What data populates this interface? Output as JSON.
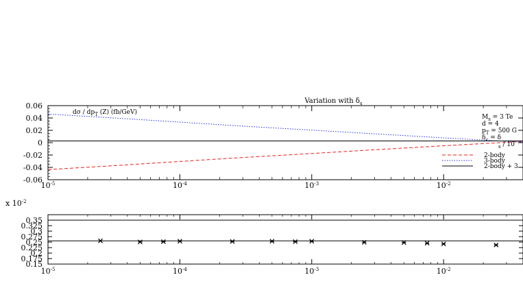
{
  "chart_data": [
    {
      "type": "line",
      "title": "Variation with δ",
      "title_sub": "s",
      "annotation": {
        "main": "dσ / dp",
        "sub": "T",
        "rest": " (Z) (fb/GeV)"
      },
      "x_scale": "log",
      "xlim": [
        1e-05,
        0.04
      ],
      "ylim": [
        -0.06,
        0.06
      ],
      "x_ticks": [
        {
          "value": 1e-05,
          "base": "10",
          "exp": "-5"
        },
        {
          "value": 0.0001,
          "base": "10",
          "exp": "-4"
        },
        {
          "value": 0.001,
          "base": "10",
          "exp": "-3"
        },
        {
          "value": 0.01,
          "base": "10",
          "exp": "-2"
        }
      ],
      "y_ticks": [
        {
          "value": 0.06,
          "label": "0.06"
        },
        {
          "value": 0.04,
          "label": "0.04"
        },
        {
          "value": 0.02,
          "label": "0.02"
        },
        {
          "value": 0,
          "label": "0"
        },
        {
          "value": -0.02,
          "label": "-0.02"
        },
        {
          "value": -0.04,
          "label": "-0.04"
        },
        {
          "value": -0.06,
          "label": "-0.06"
        }
      ],
      "params": [
        {
          "main": "M",
          "sub": "s",
          "rest": " = 3 Te"
        },
        {
          "main": "d = 4",
          "sub": "",
          "rest": ""
        },
        {
          "main": "p",
          "sub": "T",
          "rest": " = 500 G"
        },
        {
          "main": "δ",
          "sub": "c",
          "rest": " = δ"
        },
        {
          "main": "",
          "sub": "s",
          "rest": " / 10"
        }
      ],
      "legend_position": "lower-right",
      "series": [
        {
          "name": "2-body",
          "style": "dashed",
          "color": "#e8201e",
          "x": [
            1e-05,
            3e-05,
            0.0001,
            0.0003,
            0.001,
            0.003,
            0.01,
            0.04
          ],
          "y": [
            -0.0435,
            -0.0375,
            -0.0305,
            -0.024,
            -0.0175,
            -0.0115,
            -0.005,
            0.002
          ]
        },
        {
          "name": "3-body",
          "style": "dotted",
          "color": "#2630d6",
          "x": [
            1e-05,
            3e-05,
            0.0001,
            0.0003,
            0.001,
            0.003,
            0.01,
            0.04
          ],
          "y": [
            0.0463,
            0.0403,
            0.0333,
            0.0268,
            0.0203,
            0.0143,
            0.0078,
            0.0008
          ]
        },
        {
          "name": "2-body + 3",
          "style": "solid",
          "color": "#000000",
          "x": [
            1e-05,
            0.04
          ],
          "y": [
            0.0028,
            0.0028
          ]
        }
      ]
    },
    {
      "type": "scatter",
      "multiplier": {
        "prefix": "x 10",
        "exp": "-2"
      },
      "x_scale": "log",
      "xlim": [
        1e-05,
        0.04
      ],
      "ylim": [
        0.15,
        0.375
      ],
      "x_ticks": [
        {
          "value": 1e-05,
          "base": "10",
          "exp": "-5"
        },
        {
          "value": 0.0001,
          "base": "10",
          "exp": "-4"
        },
        {
          "value": 0.001,
          "base": "10",
          "exp": "-3"
        },
        {
          "value": 0.01,
          "base": "10",
          "exp": "-2"
        }
      ],
      "y_ticks": [
        {
          "value": 0.35,
          "label": "0.35"
        },
        {
          "value": 0.325,
          "label": "0.325"
        },
        {
          "value": 0.3,
          "label": "0.3"
        },
        {
          "value": 0.275,
          "label": "0.275"
        },
        {
          "value": 0.25,
          "label": "0.25"
        },
        {
          "value": 0.225,
          "label": "0.225"
        },
        {
          "value": 0.2,
          "label": "0.2"
        },
        {
          "value": 0.175,
          "label": "0.175"
        },
        {
          "value": 0.15,
          "label": "0.15"
        }
      ],
      "reference_lines": [
        0.35,
        0.256
      ],
      "points": {
        "x": [
          2.5e-05,
          5e-05,
          7.5e-05,
          0.0001,
          0.00025,
          0.0005,
          0.00075,
          0.001,
          0.0025,
          0.005,
          0.0075,
          0.01,
          0.025
        ],
        "y": [
          0.256,
          0.251,
          0.252,
          0.254,
          0.253,
          0.254,
          0.252,
          0.254,
          0.249,
          0.248,
          0.245,
          0.242,
          0.237
        ]
      }
    }
  ]
}
